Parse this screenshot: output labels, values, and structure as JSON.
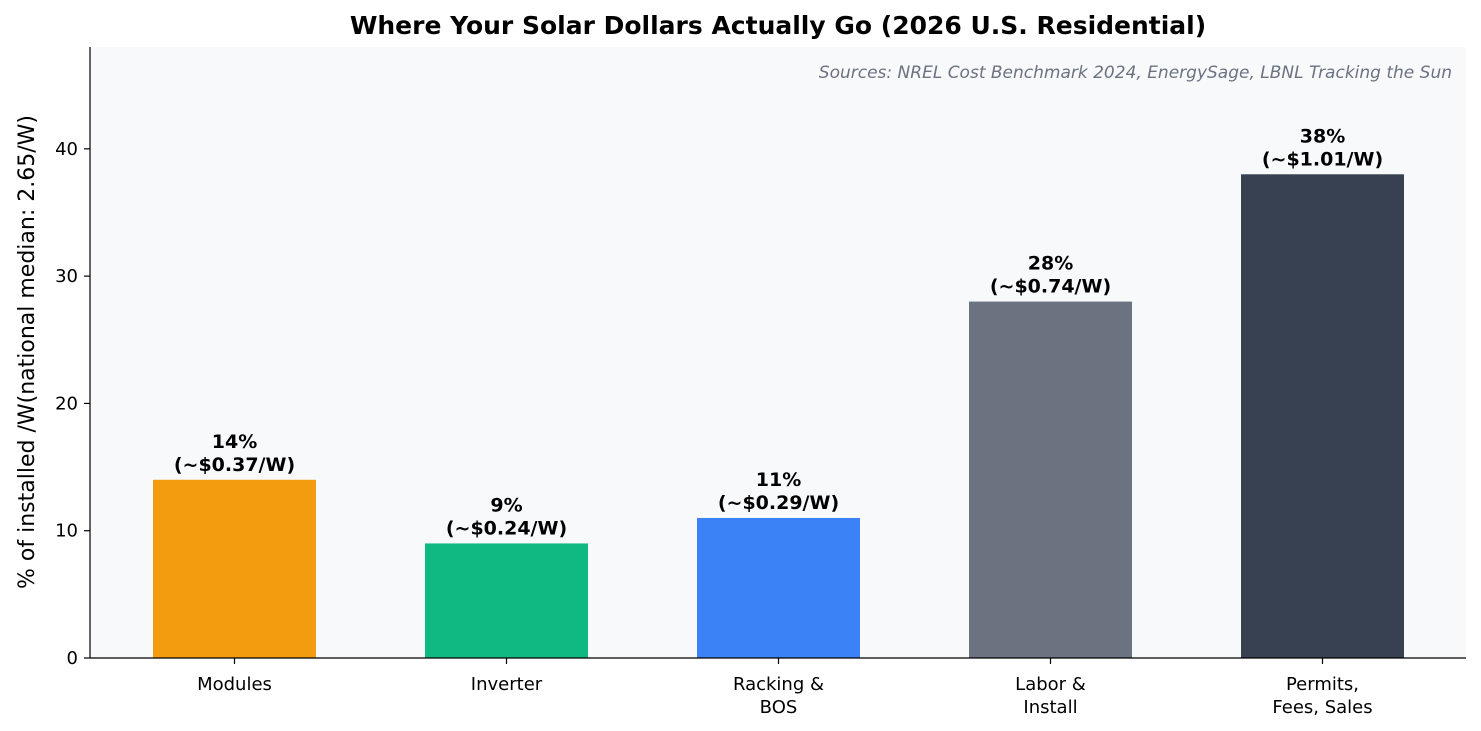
{
  "chart_data": {
    "type": "bar",
    "title": "Where Your Solar Dollars Actually Go (2026 U.S. Residential)",
    "annotation": "Sources: NREL Cost Benchmark 2024, EnergySage, LBNL Tracking the Sun",
    "ylabel": "% of installed /W(national median: 2.65/W)",
    "xlabel": "",
    "categories": [
      [
        "Modules"
      ],
      [
        "Inverter"
      ],
      [
        "Racking &",
        "BOS"
      ],
      [
        "Labor &",
        "Install"
      ],
      [
        "Permits,",
        "Fees, Sales"
      ]
    ],
    "values": [
      14,
      9,
      11,
      28,
      38
    ],
    "data_labels": [
      [
        "14%",
        "(~$0.37/W)"
      ],
      [
        "9%",
        "(~$0.24/W)"
      ],
      [
        "11%",
        "(~$0.29/W)"
      ],
      [
        "28%",
        "(~$0.74/W)"
      ],
      [
        "38%",
        "(~$1.01/W)"
      ]
    ],
    "colors": [
      "#f39c0f",
      "#10b981",
      "#3b82f6",
      "#6b7280",
      "#374151"
    ],
    "plot_background": "#f8f9fb",
    "ylim": [
      0,
      48
    ],
    "yticks": [
      0,
      10,
      20,
      30,
      40
    ],
    "grid": false,
    "legend": "none"
  }
}
